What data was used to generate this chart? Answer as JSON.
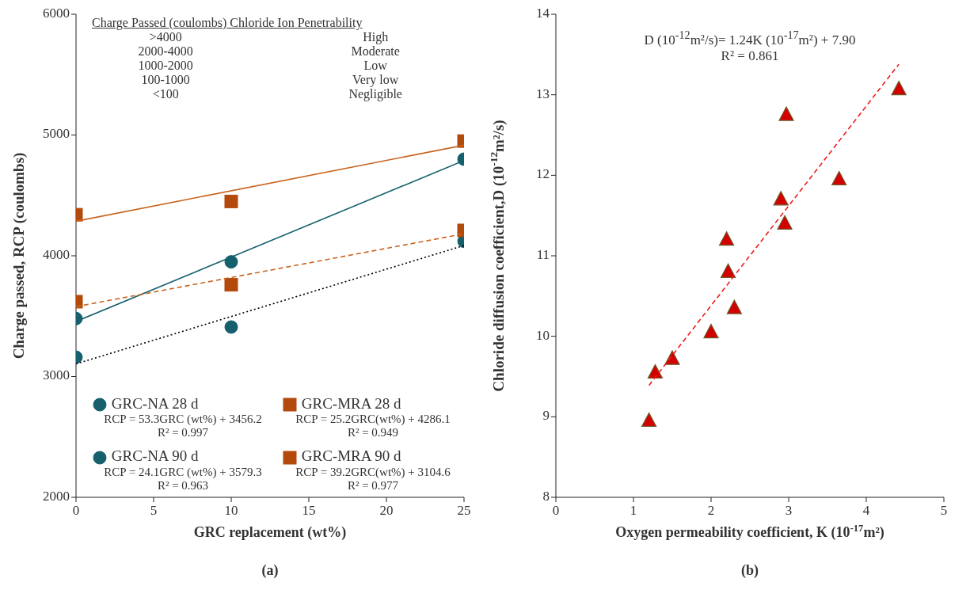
{
  "chart_data": [
    {
      "type": "scatter",
      "xlabel": "GRC replacement (wt%)",
      "ylabel": "Charge passed, RCP (coulombs)",
      "x": [
        0,
        10,
        25
      ],
      "xlim": [
        0,
        25
      ],
      "xticks": [
        0,
        5,
        10,
        15,
        20,
        25
      ],
      "ylim": [
        2000,
        6000
      ],
      "yticks": [
        2000,
        3000,
        4000,
        5000,
        6000
      ],
      "grid": false,
      "legend": "bottom",
      "series": [
        {
          "name": "GRC-NA 28 d",
          "color": "#16606e",
          "marker": "circle",
          "values": [
            3480,
            3950,
            4800
          ]
        },
        {
          "name": "GRC-MRA 28 d",
          "color": "#b4490c",
          "marker": "square",
          "values": [
            4340,
            4450,
            4950
          ]
        },
        {
          "name": "GRC-NA 90 d",
          "color": "#16606e",
          "marker": "circle",
          "values": [
            3160,
            3410,
            4120
          ]
        },
        {
          "name": "GRC-MRA 90 d",
          "color": "#b4490c",
          "marker": "square",
          "values": [
            3620,
            3760,
            4210
          ]
        },
        {
          "type": "line",
          "color": "#16606e",
          "line_style": "solid",
          "x": [
            0,
            25
          ],
          "values": [
            3456,
            4789
          ]
        },
        {
          "type": "line",
          "color": "#c8641e",
          "line_style": "solid",
          "x": [
            0,
            25
          ],
          "values": [
            4286,
            4916
          ]
        },
        {
          "type": "line",
          "color": "#c8641e",
          "line_style": "dashed",
          "x": [
            0,
            25
          ],
          "values": [
            3579,
            4182
          ]
        },
        {
          "type": "line",
          "color": "#000000",
          "line_style": "dotted",
          "x": [
            0,
            25
          ],
          "values": [
            3105,
            4085
          ]
        }
      ],
      "annotations": [
        "Charge Passed (coulombs) Chloride Ion Penetrability",
        ">4000",
        "High",
        "2000-4000",
        "Moderate",
        "1000-2000",
        "Low",
        "100-1000",
        "Very low",
        "<100",
        "Negligible",
        "RCP = 53.3GRC (wt%) + 3456.2",
        "R² = 0.997",
        "RCP = 25.2GRC(wt%) + 4286.1",
        "R² = 0.949",
        "RCP = 24.1GRC (wt%) + 3579.3",
        "R² = 0.963",
        "RCP = 39.2GRC(wt%) + 3104.6",
        "R² = 0.977",
        "(a)"
      ]
    },
    {
      "type": "scatter",
      "xlabel": "Oxygen permeability coefficient, K (10$^{-17}$m²)",
      "ylabel": "Chloride diffusion coefficient,D (10$^{-12}$m²/s)",
      "xlim": [
        0,
        5
      ],
      "xticks": [
        0,
        1,
        2,
        3,
        4,
        5
      ],
      "ylim": [
        8,
        14
      ],
      "yticks": [
        8,
        9,
        10,
        11,
        12,
        13,
        14
      ],
      "grid": false,
      "series": [
        {
          "color": "#d40000",
          "marker": "triangle",
          "x": [
            1.2,
            1.28,
            1.5,
            2.0,
            2.2,
            2.22,
            2.3,
            2.9,
            2.95,
            2.97,
            3.65,
            4.42
          ],
          "values": [
            8.95,
            9.55,
            9.72,
            10.05,
            11.2,
            10.8,
            10.35,
            11.7,
            11.4,
            12.75,
            11.95,
            13.07
          ]
        },
        {
          "type": "line",
          "color": "#ee1c1c",
          "line_style": "dashed",
          "x": [
            1.2,
            4.42
          ],
          "values": [
            9.39,
            13.38
          ]
        }
      ],
      "annotations": [
        "D (10$^{-12}$m²/s)= 1.24K (10$^{-17}$m²) + 7.90",
        "R² = 0.861",
        "(b)"
      ]
    }
  ]
}
